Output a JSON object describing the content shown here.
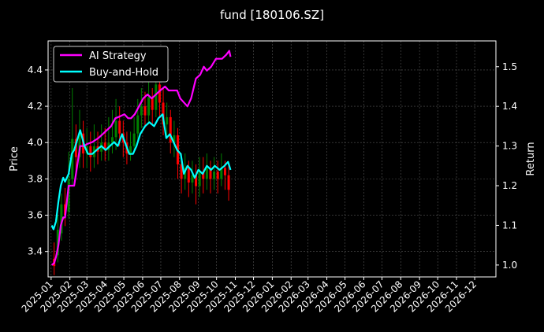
{
  "chart_data": {
    "type": "line",
    "title": "fund [180106.SZ]",
    "xlabel": "",
    "ylabel_left": "Price",
    "ylabel_right": "Return",
    "x_ticks": [
      "2025-01",
      "2025-02",
      "2025-03",
      "2025-04",
      "2025-05",
      "2025-06",
      "2025-07",
      "2025-08",
      "2025-09",
      "2025-10",
      "2025-11",
      "2025-12",
      "2026-01",
      "2026-02",
      "2026-03",
      "2026-04",
      "2026-05",
      "2026-06",
      "2026-07",
      "2026-08",
      "2026-09",
      "2026-10",
      "2026-11",
      "2026-12"
    ],
    "x_range": [
      "2024-12-27",
      "2027-01-05"
    ],
    "ylim_left": [
      3.26,
      4.56
    ],
    "ylim_right": [
      0.97,
      1.565
    ],
    "y_ticks_left": [
      "3.4",
      "3.6",
      "3.8",
      "4.0",
      "4.2",
      "4.4"
    ],
    "y_ticks_right": [
      "1.0",
      "1.1",
      "1.2",
      "1.3",
      "1.4",
      "1.5"
    ],
    "grid": true,
    "legend": {
      "placement": "top-left",
      "entries": [
        "AI Strategy",
        "Buy-and-Hold"
      ]
    },
    "colors": {
      "ai": "#ff00ff",
      "bh": "#00ffff",
      "up": "#008000",
      "down": "#ff0000",
      "grid": "#555555",
      "axes": "#ffffff",
      "background": "#000000"
    },
    "series": [
      {
        "name": "AI Strategy",
        "axis": "right",
        "points": [
          [
            "2025-01-02",
            1.0
          ],
          [
            "2025-01-06",
            1.005
          ],
          [
            "2025-01-09",
            1.02
          ],
          [
            "2025-01-13",
            1.05
          ],
          [
            "2025-01-17",
            1.1
          ],
          [
            "2025-01-21",
            1.12
          ],
          [
            "2025-01-24",
            1.12
          ],
          [
            "2025-01-30",
            1.2
          ],
          [
            "2025-02-04",
            1.2
          ],
          [
            "2025-02-08",
            1.2
          ],
          [
            "2025-02-13",
            1.25
          ],
          [
            "2025-02-18",
            1.3
          ],
          [
            "2025-02-25",
            1.3
          ],
          [
            "2025-03-01",
            1.305
          ],
          [
            "2025-03-10",
            1.31
          ],
          [
            "2025-03-20",
            1.32
          ],
          [
            "2025-03-27",
            1.33
          ],
          [
            "2025-04-03",
            1.34
          ],
          [
            "2025-04-10",
            1.35
          ],
          [
            "2025-04-17",
            1.37
          ],
          [
            "2025-04-25",
            1.375
          ],
          [
            "2025-05-02",
            1.38
          ],
          [
            "2025-05-08",
            1.37
          ],
          [
            "2025-05-13",
            1.37
          ],
          [
            "2025-05-19",
            1.38
          ],
          [
            "2025-05-26",
            1.4
          ],
          [
            "2025-06-02",
            1.42
          ],
          [
            "2025-06-09",
            1.43
          ],
          [
            "2025-06-16",
            1.42
          ],
          [
            "2025-06-23",
            1.43
          ],
          [
            "2025-06-30",
            1.44
          ],
          [
            "2025-07-08",
            1.45
          ],
          [
            "2025-07-14",
            1.44
          ],
          [
            "2025-07-20",
            1.44
          ],
          [
            "2025-07-28",
            1.44
          ],
          [
            "2025-08-02",
            1.42
          ],
          [
            "2025-08-08",
            1.41
          ],
          [
            "2025-08-14",
            1.4
          ],
          [
            "2025-08-20",
            1.42
          ],
          [
            "2025-08-28",
            1.47
          ],
          [
            "2025-09-04",
            1.48
          ],
          [
            "2025-09-10",
            1.5
          ],
          [
            "2025-09-15",
            1.49
          ],
          [
            "2025-09-22",
            1.5
          ],
          [
            "2025-09-30",
            1.52
          ],
          [
            "2025-10-10",
            1.52
          ],
          [
            "2025-10-17",
            1.53
          ],
          [
            "2025-10-22",
            1.54
          ],
          [
            "2025-10-24",
            1.525
          ]
        ]
      },
      {
        "name": "Buy-and-Hold",
        "axis": "right",
        "points": [
          [
            "2025-01-02",
            1.1
          ],
          [
            "2025-01-05",
            1.09
          ],
          [
            "2025-01-09",
            1.11
          ],
          [
            "2025-01-13",
            1.16
          ],
          [
            "2025-01-17",
            1.2
          ],
          [
            "2025-01-21",
            1.22
          ],
          [
            "2025-01-24",
            1.21
          ],
          [
            "2025-01-30",
            1.23
          ],
          [
            "2025-02-04",
            1.28
          ],
          [
            "2025-02-08",
            1.29
          ],
          [
            "2025-02-12",
            1.31
          ],
          [
            "2025-02-18",
            1.34
          ],
          [
            "2025-02-25",
            1.3
          ],
          [
            "2025-03-03",
            1.28
          ],
          [
            "2025-03-10",
            1.28
          ],
          [
            "2025-03-17",
            1.29
          ],
          [
            "2025-03-25",
            1.3
          ],
          [
            "2025-04-01",
            1.29
          ],
          [
            "2025-04-08",
            1.3
          ],
          [
            "2025-04-15",
            1.31
          ],
          [
            "2025-04-21",
            1.3
          ],
          [
            "2025-04-28",
            1.33
          ],
          [
            "2025-05-05",
            1.3
          ],
          [
            "2025-05-10",
            1.28
          ],
          [
            "2025-05-16",
            1.28
          ],
          [
            "2025-05-22",
            1.3
          ],
          [
            "2025-05-28",
            1.33
          ],
          [
            "2025-06-05",
            1.35
          ],
          [
            "2025-06-12",
            1.36
          ],
          [
            "2025-06-20",
            1.35
          ],
          [
            "2025-06-27",
            1.37
          ],
          [
            "2025-07-04",
            1.38
          ],
          [
            "2025-07-10",
            1.32
          ],
          [
            "2025-07-16",
            1.33
          ],
          [
            "2025-07-22",
            1.31
          ],
          [
            "2025-07-28",
            1.29
          ],
          [
            "2025-08-03",
            1.28
          ],
          [
            "2025-08-08",
            1.23
          ],
          [
            "2025-08-14",
            1.25
          ],
          [
            "2025-08-20",
            1.24
          ],
          [
            "2025-08-26",
            1.22
          ],
          [
            "2025-09-01",
            1.24
          ],
          [
            "2025-09-08",
            1.23
          ],
          [
            "2025-09-15",
            1.25
          ],
          [
            "2025-09-22",
            1.24
          ],
          [
            "2025-09-28",
            1.25
          ],
          [
            "2025-10-06",
            1.24
          ],
          [
            "2025-10-14",
            1.25
          ],
          [
            "2025-10-20",
            1.26
          ],
          [
            "2025-10-24",
            1.24
          ]
        ]
      }
    ],
    "candles": [
      [
        "2025-01-06",
        3.36,
        3.32,
        3.45,
        3.27
      ],
      [
        "2025-01-12",
        3.38,
        3.52,
        3.6,
        3.34
      ],
      [
        "2025-01-18",
        3.5,
        3.66,
        3.72,
        3.46
      ],
      [
        "2025-01-24",
        3.66,
        3.6,
        3.75,
        3.54
      ],
      [
        "2025-01-30",
        3.62,
        3.8,
        3.95,
        3.58
      ],
      [
        "2025-02-05",
        3.8,
        4.02,
        4.3,
        3.76
      ],
      [
        "2025-02-11",
        4.02,
        3.92,
        4.1,
        3.82
      ],
      [
        "2025-02-17",
        3.92,
        4.05,
        4.18,
        3.86
      ],
      [
        "2025-02-23",
        4.05,
        3.94,
        4.12,
        3.86
      ],
      [
        "2025-03-01",
        3.94,
        3.98,
        4.08,
        3.86
      ],
      [
        "2025-03-07",
        3.98,
        3.92,
        4.06,
        3.84
      ],
      [
        "2025-03-13",
        3.92,
        3.98,
        4.1,
        3.86
      ],
      [
        "2025-03-19",
        3.98,
        3.95,
        4.06,
        3.88
      ],
      [
        "2025-03-25",
        3.95,
        4.0,
        4.1,
        3.9
      ],
      [
        "2025-03-31",
        4.0,
        3.96,
        4.08,
        3.9
      ],
      [
        "2025-04-06",
        3.96,
        4.0,
        4.14,
        3.9
      ],
      [
        "2025-04-12",
        4.0,
        4.03,
        4.18,
        3.94
      ],
      [
        "2025-04-18",
        4.03,
        4.12,
        4.24,
        3.96
      ],
      [
        "2025-04-24",
        4.12,
        4.05,
        4.2,
        3.98
      ],
      [
        "2025-04-30",
        4.05,
        4.0,
        4.12,
        3.92
      ],
      [
        "2025-05-06",
        4.0,
        3.94,
        4.06,
        3.88
      ],
      [
        "2025-05-12",
        3.94,
        3.98,
        4.06,
        3.9
      ],
      [
        "2025-05-18",
        3.98,
        4.05,
        4.14,
        3.94
      ],
      [
        "2025-05-24",
        4.05,
        4.15,
        4.24,
        4.0
      ],
      [
        "2025-05-30",
        4.15,
        4.2,
        4.3,
        4.08
      ],
      [
        "2025-06-05",
        4.2,
        4.15,
        4.28,
        4.08
      ],
      [
        "2025-06-11",
        4.15,
        4.25,
        4.34,
        4.1
      ],
      [
        "2025-06-17",
        4.25,
        4.18,
        4.3,
        4.1
      ],
      [
        "2025-06-23",
        4.18,
        4.32,
        4.4,
        4.14
      ],
      [
        "2025-06-29",
        4.32,
        4.22,
        4.36,
        4.14
      ],
      [
        "2025-07-05",
        4.22,
        4.1,
        4.3,
        4.04
      ],
      [
        "2025-07-11",
        4.1,
        4.14,
        4.22,
        4.02
      ],
      [
        "2025-07-17",
        4.14,
        4.0,
        4.18,
        3.94
      ],
      [
        "2025-07-23",
        4.0,
        4.04,
        4.12,
        3.92
      ],
      [
        "2025-07-29",
        4.04,
        3.88,
        4.08,
        3.8
      ],
      [
        "2025-08-04",
        3.88,
        3.8,
        3.94,
        3.72
      ],
      [
        "2025-08-10",
        3.8,
        3.86,
        3.94,
        3.74
      ],
      [
        "2025-08-16",
        3.86,
        3.78,
        3.9,
        3.7
      ],
      [
        "2025-08-22",
        3.78,
        3.82,
        3.9,
        3.72
      ],
      [
        "2025-08-28",
        3.82,
        3.76,
        3.88,
        3.66
      ],
      [
        "2025-09-03",
        3.76,
        3.84,
        3.92,
        3.7
      ],
      [
        "2025-09-09",
        3.84,
        3.8,
        3.92,
        3.72
      ],
      [
        "2025-09-15",
        3.8,
        3.86,
        3.94,
        3.74
      ],
      [
        "2025-09-21",
        3.86,
        3.8,
        3.9,
        3.72
      ],
      [
        "2025-09-27",
        3.8,
        3.84,
        3.92,
        3.74
      ],
      [
        "2025-10-03",
        3.84,
        3.8,
        3.9,
        3.72
      ],
      [
        "2025-10-09",
        3.8,
        3.86,
        3.94,
        3.76
      ],
      [
        "2025-10-15",
        3.86,
        3.82,
        3.9,
        3.74
      ],
      [
        "2025-10-21",
        3.82,
        3.74,
        3.88,
        3.68
      ]
    ]
  }
}
